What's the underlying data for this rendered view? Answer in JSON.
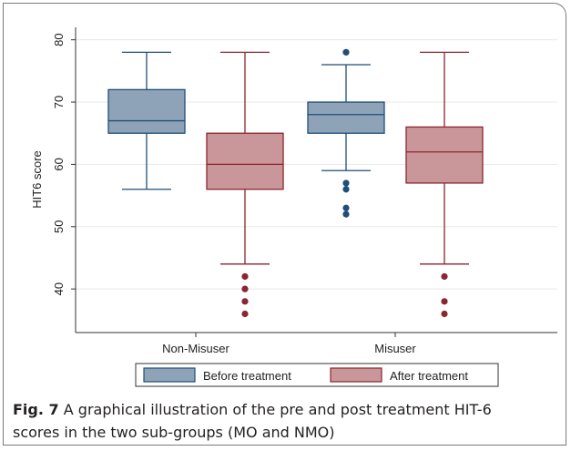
{
  "chart_data": {
    "type": "box",
    "ylabel": "HIT6 score",
    "ylim": [
      33,
      82
    ],
    "yticks": [
      40,
      50,
      60,
      70,
      80
    ],
    "grid": true,
    "legend_position": "bottom",
    "categories": [
      "Non-Misuser",
      "Misuser"
    ],
    "series": [
      {
        "name": "Before treatment",
        "color": "#8ea3b8",
        "edge": "#1f4e79",
        "boxes": [
          {
            "category": "Non-Misuser",
            "whisker_low": 56,
            "q1": 65,
            "median": 67,
            "q3": 72,
            "whisker_high": 78,
            "outliers": []
          },
          {
            "category": "Misuser",
            "whisker_low": 59,
            "q1": 65,
            "median": 68,
            "q3": 70,
            "whisker_high": 76,
            "outliers": [
              78,
              57,
              56,
              53,
              52
            ]
          }
        ]
      },
      {
        "name": "After treatment",
        "color": "#c99799",
        "edge": "#8b2530",
        "boxes": [
          {
            "category": "Non-Misuser",
            "whisker_low": 44,
            "q1": 56,
            "median": 60,
            "q3": 65,
            "whisker_high": 78,
            "outliers": [
              42,
              40,
              38,
              36
            ]
          },
          {
            "category": "Misuser",
            "whisker_low": 44,
            "q1": 57,
            "median": 62,
            "q3": 66,
            "whisker_high": 78,
            "outliers": [
              42,
              38,
              36
            ]
          }
        ]
      }
    ]
  },
  "caption": {
    "label": "Fig. 7",
    "text": "A graphical illustration of the pre and post treatment HIT-6 scores in the two sub-groups (MO and NMO)"
  }
}
